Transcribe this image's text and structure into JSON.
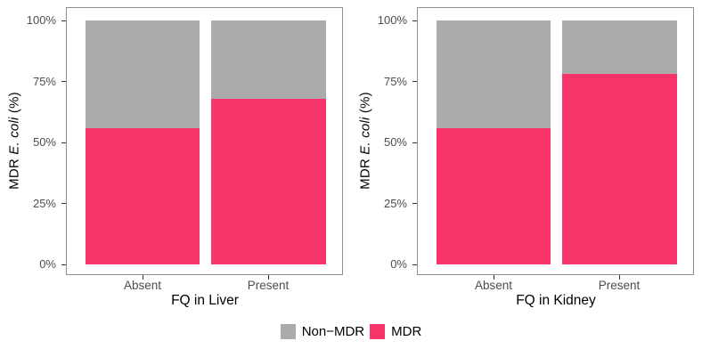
{
  "figure": {
    "background": "#ffffff"
  },
  "colors": {
    "mdr_pink": "#F8356B",
    "non_mdr_gray": "#ABABAB",
    "panel_border": "#8f8f8f",
    "tick_text": "#4d4d4d",
    "title_text": "#000000"
  },
  "legend": {
    "position": "bottom-center",
    "items": [
      {
        "label": "Non−MDR",
        "color": "#ABABAB"
      },
      {
        "label": "MDR",
        "color": "#F8356B"
      }
    ]
  },
  "chart_data": [
    {
      "type": "bar",
      "stacked": true,
      "normalized_to_100": true,
      "categories": [
        "Absent",
        "Present"
      ],
      "series": [
        {
          "name": "Non-MDR",
          "values": [
            44,
            32
          ],
          "color": "#ABABAB"
        },
        {
          "name": "MDR",
          "values": [
            56,
            68
          ],
          "color": "#F8356B"
        }
      ],
      "xlabel": "FQ in Liver",
      "ylabel": "MDR E. coli (%)",
      "ylabel_parts": {
        "prefix": "MDR ",
        "italic": "E. coli",
        "suffix": " (%)"
      },
      "ytick_labels": [
        "0%",
        "25%",
        "50%",
        "75%",
        "100%"
      ],
      "ylim": [
        0,
        100
      ],
      "grid": false,
      "legend_position": "bottom"
    },
    {
      "type": "bar",
      "stacked": true,
      "normalized_to_100": true,
      "categories": [
        "Absent",
        "Present"
      ],
      "series": [
        {
          "name": "Non-MDR",
          "values": [
            44,
            22
          ],
          "color": "#ABABAB"
        },
        {
          "name": "MDR",
          "values": [
            56,
            78
          ],
          "color": "#F8356B"
        }
      ],
      "xlabel": "FQ in Kidney",
      "ylabel": "MDR E. coli (%)",
      "ylabel_parts": {
        "prefix": "MDR ",
        "italic": "E. coli",
        "suffix": " (%)"
      },
      "ytick_labels": [
        "0%",
        "25%",
        "50%",
        "75%",
        "100%"
      ],
      "ylim": [
        0,
        100
      ],
      "grid": false,
      "legend_position": "bottom"
    }
  ]
}
